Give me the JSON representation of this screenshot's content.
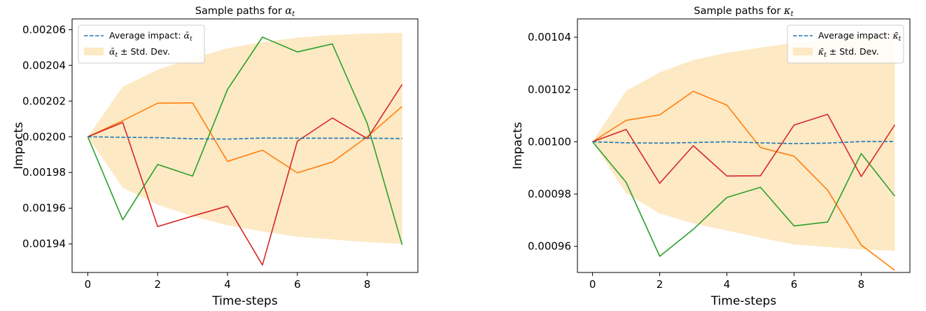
{
  "chart_data": [
    {
      "type": "line",
      "title": "Sample paths for ",
      "title_symbol": "α",
      "title_subscript": "t",
      "xlabel": "Time-steps",
      "ylabel": "Impacts",
      "x": [
        0,
        1,
        2,
        3,
        4,
        5,
        6,
        7,
        8,
        9
      ],
      "xlim": [
        -0.45,
        9.45
      ],
      "ylim": [
        0.001924,
        0.002066
      ],
      "xticks": [
        0,
        2,
        4,
        6,
        8
      ],
      "yticks": [
        0.00194,
        0.00196,
        0.00198,
        0.002,
        0.00202,
        0.00204,
        0.00206
      ],
      "ytick_labels": [
        "0.00194",
        "0.00196",
        "0.00198",
        "0.00200",
        "0.00202",
        "0.00204",
        "0.00206"
      ],
      "grid": false,
      "legend_position": "top-left",
      "legend": {
        "mean_label": "Average impact: ",
        "mean_symbol": "ᾱ",
        "mean_subscript": "t",
        "band_symbol": "ᾱ",
        "band_subscript": "t",
        "band_label": " ± Std. Dev."
      },
      "mean": {
        "color": "#1f77b4",
        "values": [
          0.002,
          0.0019997,
          0.0019995,
          0.0019989,
          0.0019987,
          0.0019993,
          0.0019992,
          0.0019992,
          0.0019992,
          0.001999
        ]
      },
      "band": {
        "color": "#fde9c4",
        "lower": [
          0.002,
          0.0019715,
          0.001962,
          0.0019555,
          0.0019505,
          0.001947,
          0.001944,
          0.0019425,
          0.001941,
          0.00194
        ],
        "upper": [
          0.002,
          0.002028,
          0.0020375,
          0.002044,
          0.0020495,
          0.002053,
          0.0020555,
          0.002057,
          0.0020578,
          0.0020582
        ]
      },
      "series": [
        {
          "color": "#ff7f0e",
          "values": [
            0.002,
            0.002009,
            0.0020188,
            0.002019,
            0.0019862,
            0.0019925,
            0.0019798,
            0.0019858,
            0.002,
            0.002017
          ]
        },
        {
          "color": "#2ca02c",
          "values": [
            0.002,
            0.0019535,
            0.0019845,
            0.001978,
            0.0020265,
            0.0020558,
            0.0020475,
            0.002052,
            0.0020075,
            0.0019395
          ]
        },
        {
          "color": "#d62728",
          "values": [
            0.002,
            0.002008,
            0.0019497,
            0.0019556,
            0.0019612,
            0.0019282,
            0.0019975,
            0.0020105,
            0.001999,
            0.0020293
          ]
        }
      ]
    },
    {
      "type": "line",
      "title": "Sample paths for ",
      "title_symbol": "κ",
      "title_subscript": "t",
      "xlabel": "Time-steps",
      "ylabel": "Impacts",
      "x": [
        0,
        1,
        2,
        3,
        4,
        5,
        6,
        7,
        8,
        9
      ],
      "xlim": [
        -0.45,
        9.45
      ],
      "ylim": [
        0.00095,
        0.001047
      ],
      "xticks": [
        0,
        2,
        4,
        6,
        8
      ],
      "yticks": [
        0.00096,
        0.00098,
        0.001,
        0.00102,
        0.00104
      ],
      "ytick_labels": [
        "0.00096",
        "0.00098",
        "0.00100",
        "0.00102",
        "0.00104"
      ],
      "grid": false,
      "legend_position": "top-right",
      "legend": {
        "mean_label": "Average impact: ",
        "mean_symbol": "κ̄",
        "mean_subscript": "t",
        "band_symbol": "κ̄",
        "band_subscript": "t",
        "band_label": " ± Std. Dev."
      },
      "mean": {
        "color": "#1f77b4",
        "values": [
          0.001,
          0.0009996,
          0.0009995,
          0.0009997,
          0.001,
          0.0009996,
          0.0009993,
          0.0009995,
          0.0010001,
          0.0010001
        ]
      },
      "band": {
        "color": "#fde9c4",
        "lower": [
          0.001,
          0.0009803,
          0.0009725,
          0.0009688,
          0.000966,
          0.0009633,
          0.0009607,
          0.0009597,
          0.0009588,
          0.0009583
        ],
        "upper": [
          0.001,
          0.0010195,
          0.0010265,
          0.0010313,
          0.001034,
          0.001036,
          0.0010378,
          0.0010392,
          0.0010405,
          0.0010418
        ]
      },
      "series": [
        {
          "color": "#ff7f0e",
          "values": [
            0.001,
            0.0010082,
            0.0010103,
            0.0010193,
            0.001014,
            0.0009978,
            0.0009945,
            0.0009815,
            0.0009605,
            0.0009508
          ]
        },
        {
          "color": "#2ca02c",
          "values": [
            0.001,
            0.0009845,
            0.0009562,
            0.0009665,
            0.0009787,
            0.0009826,
            0.0009678,
            0.0009693,
            0.0009955,
            0.0009792
          ]
        },
        {
          "color": "#d62728",
          "values": [
            0.001,
            0.0010047,
            0.0009841,
            0.0009985,
            0.0009869,
            0.000987,
            0.0010064,
            0.0010105,
            0.0009867,
            0.0010065
          ]
        }
      ]
    }
  ]
}
